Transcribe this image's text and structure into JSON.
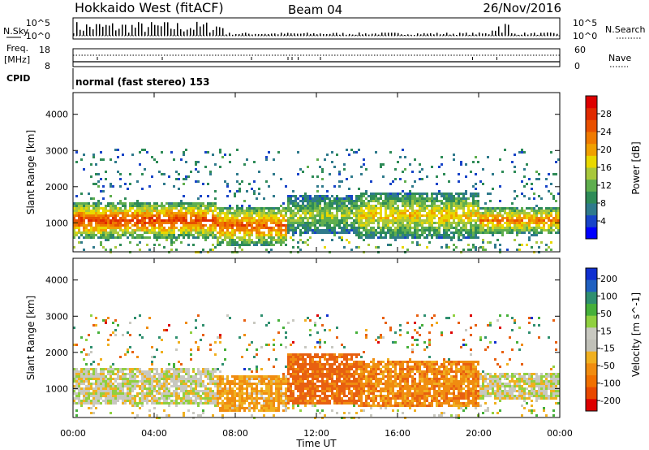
{
  "header": {
    "station": "Hokkaido West (fitACF)",
    "beam": "Beam 04",
    "date": "26/Nov/2016"
  },
  "status_panel": {
    "nsky_label": "N.Sky",
    "nsearch_label": "N.Search",
    "freq_label_1": "Freq.",
    "freq_label_2": "[MHz]",
    "nave_label": "Nave",
    "cpid_label": "CPID",
    "cpid_value": "normal (fast stereo) 153",
    "noise_ticks": [
      "10^5",
      "10^0"
    ],
    "freq_ticks": [
      "18",
      "8"
    ],
    "nave_ticks": [
      "60",
      "0"
    ]
  },
  "colorbars": {
    "power": {
      "label": "Power [dB]",
      "ticks": [
        "4",
        "8",
        "12",
        "16",
        "20",
        "24",
        "28"
      ],
      "colors": [
        "#0000ff",
        "#1844c8",
        "#2f7a8c",
        "#2e8b57",
        "#5fae4e",
        "#a8c83c",
        "#e8d800",
        "#f0a000",
        "#ef7a00",
        "#e85000",
        "#e02a00",
        "#dd0000"
      ]
    },
    "velocity": {
      "label": "Velocity [m s^-1]",
      "ticks": [
        "200",
        "100",
        "50",
        "15",
        "-15",
        "-50",
        "-100",
        "-200"
      ],
      "colors": [
        "#1030d0",
        "#2060c0",
        "#2f8f6f",
        "#46b03a",
        "#90d040",
        "#c8c8c0",
        "#c0c0b8",
        "#f0b020",
        "#f08c10",
        "#f07000",
        "#e84800",
        "#dd0000"
      ]
    }
  },
  "chart_data": [
    {
      "type": "heatmap",
      "title": "Power",
      "xlabel": "",
      "ylabel": "Slant Range [km]",
      "x_ticks": [
        "00:00",
        "04:00",
        "08:00",
        "12:00",
        "16:00",
        "20:00",
        "00:00"
      ],
      "y_ticks": [
        1000,
        2000,
        3000,
        4000
      ],
      "ylim": [
        200,
        4600
      ],
      "xlim_hours": [
        0,
        24
      ],
      "value_units": "dB",
      "value_range": [
        0,
        30
      ],
      "bands": [
        {
          "t0": 0.0,
          "t1": 7.0,
          "r0": 600,
          "r1": 1600,
          "peak": 26
        },
        {
          "t0": 7.0,
          "t1": 10.5,
          "r0": 400,
          "r1": 1500,
          "peak": 24
        },
        {
          "t0": 10.5,
          "t1": 14.0,
          "r0": 700,
          "r1": 1800,
          "peak": 14
        },
        {
          "t0": 14.0,
          "t1": 20.0,
          "r0": 600,
          "r1": 1900,
          "peak": 18
        },
        {
          "t0": 20.0,
          "t1": 24.0,
          "r0": 700,
          "r1": 1500,
          "peak": 22
        }
      ]
    },
    {
      "type": "heatmap",
      "title": "Velocity",
      "xlabel": "Time UT",
      "ylabel": "Slant Range [km]",
      "x_ticks": [
        "00:00",
        "04:00",
        "08:00",
        "12:00",
        "16:00",
        "20:00",
        "00:00"
      ],
      "y_ticks": [
        1000,
        2000,
        3000,
        4000
      ],
      "ylim": [
        200,
        4600
      ],
      "xlim_hours": [
        0,
        24
      ],
      "value_units": "m s^-1",
      "value_range": [
        -200,
        200
      ],
      "bands": [
        {
          "t0": 0.0,
          "t1": 7.0,
          "r0": 600,
          "r1": 1600,
          "vel": 0
        },
        {
          "t0": 7.0,
          "t1": 10.5,
          "r0": 400,
          "r1": 1400,
          "vel": -40
        },
        {
          "t0": 10.5,
          "t1": 14.0,
          "r0": 600,
          "r1": 2000,
          "vel": -90
        },
        {
          "t0": 14.0,
          "t1": 20.0,
          "r0": 500,
          "r1": 1800,
          "vel": -60
        },
        {
          "t0": 20.0,
          "t1": 24.0,
          "r0": 700,
          "r1": 1500,
          "vel": 0
        }
      ]
    }
  ]
}
